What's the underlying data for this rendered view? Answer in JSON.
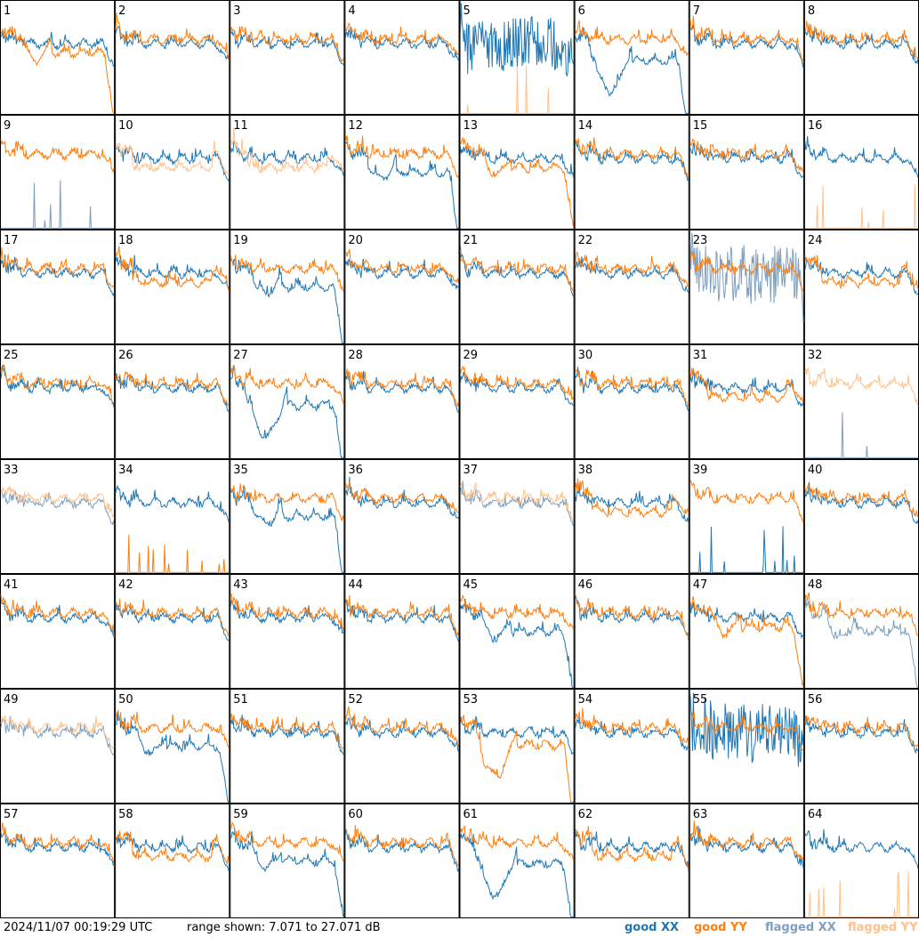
{
  "footer": {
    "timestamp": "2024/11/07 00:19:29 UTC",
    "range_text": "range shown: 7.071 to 27.071 dB"
  },
  "colors": {
    "good_xx": "#1f77b4",
    "good_yy": "#ff7f0e",
    "flagged_xx": "#7f9fbf",
    "flagged_yy": "#ffc089"
  },
  "chart_data": {
    "type": "line",
    "layout": "small-multiples 8x8",
    "y_range_db": [
      7.071,
      27.071
    ],
    "legend": [
      {
        "key": "good_xx",
        "label": "good XX"
      },
      {
        "key": "good_yy",
        "label": "good YY"
      },
      {
        "key": "flagged_xx",
        "label": "flagged XX"
      },
      {
        "key": "flagged_yy",
        "label": "flagged YY"
      }
    ],
    "panels": [
      {
        "label": "1",
        "xx": "good",
        "yy": "good",
        "xx_shape": "normal",
        "yy_shape": "dip"
      },
      {
        "label": "2",
        "xx": "good",
        "yy": "good",
        "xx_shape": "normal",
        "yy_shape": "normal"
      },
      {
        "label": "3",
        "xx": "good",
        "yy": "good",
        "xx_shape": "normal",
        "yy_shape": "normal"
      },
      {
        "label": "4",
        "xx": "good",
        "yy": "good",
        "xx_shape": "normal",
        "yy_shape": "normal"
      },
      {
        "label": "5",
        "xx": "good",
        "yy": "flagged",
        "xx_shape": "noisy",
        "yy_shape": "dead"
      },
      {
        "label": "6",
        "xx": "good",
        "yy": "good",
        "xx_shape": "deepdip",
        "yy_shape": "normal"
      },
      {
        "label": "7",
        "xx": "good",
        "yy": "good",
        "xx_shape": "normal",
        "yy_shape": "normal"
      },
      {
        "label": "8",
        "xx": "good",
        "yy": "good",
        "xx_shape": "normal",
        "yy_shape": "normal"
      },
      {
        "label": "9",
        "xx": "flagged",
        "yy": "good",
        "xx_shape": "dead",
        "yy_shape": "normal"
      },
      {
        "label": "10",
        "xx": "good",
        "yy": "flagged",
        "xx_shape": "normal",
        "yy_shape": "low"
      },
      {
        "label": "11",
        "xx": "good",
        "yy": "flagged",
        "xx_shape": "normal",
        "yy_shape": "low"
      },
      {
        "label": "12",
        "xx": "good",
        "yy": "good",
        "xx_shape": "dip",
        "yy_shape": "normal"
      },
      {
        "label": "13",
        "xx": "good",
        "yy": "good",
        "xx_shape": "normal",
        "yy_shape": "dip"
      },
      {
        "label": "14",
        "xx": "good",
        "yy": "good",
        "xx_shape": "normal",
        "yy_shape": "normal"
      },
      {
        "label": "15",
        "xx": "good",
        "yy": "good",
        "xx_shape": "normal",
        "yy_shape": "normal"
      },
      {
        "label": "16",
        "xx": "good",
        "yy": "flagged",
        "xx_shape": "normal",
        "yy_shape": "dead"
      },
      {
        "label": "17",
        "xx": "good",
        "yy": "good",
        "xx_shape": "normal",
        "yy_shape": "normal"
      },
      {
        "label": "18",
        "xx": "good",
        "yy": "good",
        "xx_shape": "normal",
        "yy_shape": "low"
      },
      {
        "label": "19",
        "xx": "good",
        "yy": "good",
        "xx_shape": "dip",
        "yy_shape": "normal"
      },
      {
        "label": "20",
        "xx": "good",
        "yy": "good",
        "xx_shape": "normal",
        "yy_shape": "normal"
      },
      {
        "label": "21",
        "xx": "good",
        "yy": "good",
        "xx_shape": "normal",
        "yy_shape": "normal"
      },
      {
        "label": "22",
        "xx": "good",
        "yy": "good",
        "xx_shape": "normal",
        "yy_shape": "normal"
      },
      {
        "label": "23",
        "xx": "flagged",
        "yy": "good",
        "xx_shape": "noisy",
        "yy_shape": "normal"
      },
      {
        "label": "24",
        "xx": "good",
        "yy": "good",
        "xx_shape": "normal",
        "yy_shape": "low"
      },
      {
        "label": "25",
        "xx": "good",
        "yy": "good",
        "xx_shape": "normal",
        "yy_shape": "normal"
      },
      {
        "label": "26",
        "xx": "good",
        "yy": "good",
        "xx_shape": "normal",
        "yy_shape": "normal"
      },
      {
        "label": "27",
        "xx": "good",
        "yy": "good",
        "xx_shape": "deepdip",
        "yy_shape": "normal"
      },
      {
        "label": "28",
        "xx": "good",
        "yy": "good",
        "xx_shape": "normal",
        "yy_shape": "normal"
      },
      {
        "label": "29",
        "xx": "good",
        "yy": "good",
        "xx_shape": "normal",
        "yy_shape": "normal"
      },
      {
        "label": "30",
        "xx": "good",
        "yy": "good",
        "xx_shape": "normal",
        "yy_shape": "normal"
      },
      {
        "label": "31",
        "xx": "good",
        "yy": "good",
        "xx_shape": "normal",
        "yy_shape": "low"
      },
      {
        "label": "32",
        "xx": "flagged",
        "yy": "flagged",
        "xx_shape": "dead",
        "yy_shape": "normal"
      },
      {
        "label": "33",
        "xx": "flagged",
        "yy": "flagged",
        "xx_shape": "normal",
        "yy_shape": "normal"
      },
      {
        "label": "34",
        "xx": "good",
        "yy": "good",
        "xx_shape": "normal",
        "yy_shape": "dead"
      },
      {
        "label": "35",
        "xx": "good",
        "yy": "good",
        "xx_shape": "dip",
        "yy_shape": "normal"
      },
      {
        "label": "36",
        "xx": "good",
        "yy": "good",
        "xx_shape": "normal",
        "yy_shape": "normal"
      },
      {
        "label": "37",
        "xx": "flagged",
        "yy": "flagged",
        "xx_shape": "normal",
        "yy_shape": "normal"
      },
      {
        "label": "38",
        "xx": "good",
        "yy": "good",
        "xx_shape": "normal",
        "yy_shape": "low"
      },
      {
        "label": "39",
        "xx": "good",
        "yy": "good",
        "xx_shape": "dead",
        "yy_shape": "normal"
      },
      {
        "label": "40",
        "xx": "good",
        "yy": "good",
        "xx_shape": "normal",
        "yy_shape": "normal"
      },
      {
        "label": "41",
        "xx": "good",
        "yy": "good",
        "xx_shape": "normal",
        "yy_shape": "normal"
      },
      {
        "label": "42",
        "xx": "good",
        "yy": "good",
        "xx_shape": "normal",
        "yy_shape": "normal"
      },
      {
        "label": "43",
        "xx": "good",
        "yy": "good",
        "xx_shape": "normal",
        "yy_shape": "normal"
      },
      {
        "label": "44",
        "xx": "good",
        "yy": "good",
        "xx_shape": "normal",
        "yy_shape": "normal"
      },
      {
        "label": "45",
        "xx": "good",
        "yy": "good",
        "xx_shape": "dip",
        "yy_shape": "normal"
      },
      {
        "label": "46",
        "xx": "good",
        "yy": "good",
        "xx_shape": "normal",
        "yy_shape": "normal"
      },
      {
        "label": "47",
        "xx": "good",
        "yy": "good",
        "xx_shape": "normal",
        "yy_shape": "dip"
      },
      {
        "label": "48",
        "xx": "flagged",
        "yy": "good",
        "xx_shape": "dip",
        "yy_shape": "normal"
      },
      {
        "label": "49",
        "xx": "flagged",
        "yy": "flagged",
        "xx_shape": "normal",
        "yy_shape": "normal"
      },
      {
        "label": "50",
        "xx": "good",
        "yy": "good",
        "xx_shape": "dip",
        "yy_shape": "normal"
      },
      {
        "label": "51",
        "xx": "good",
        "yy": "good",
        "xx_shape": "normal",
        "yy_shape": "normal"
      },
      {
        "label": "52",
        "xx": "good",
        "yy": "good",
        "xx_shape": "normal",
        "yy_shape": "normal"
      },
      {
        "label": "53",
        "xx": "good",
        "yy": "good",
        "xx_shape": "normal",
        "yy_shape": "deepdip"
      },
      {
        "label": "54",
        "xx": "good",
        "yy": "good",
        "xx_shape": "normal",
        "yy_shape": "normal"
      },
      {
        "label": "55",
        "xx": "good",
        "yy": "good",
        "xx_shape": "noisy",
        "yy_shape": "normal"
      },
      {
        "label": "56",
        "xx": "good",
        "yy": "good",
        "xx_shape": "normal",
        "yy_shape": "normal"
      },
      {
        "label": "57",
        "xx": "good",
        "yy": "good",
        "xx_shape": "normal",
        "yy_shape": "normal"
      },
      {
        "label": "58",
        "xx": "good",
        "yy": "good",
        "xx_shape": "normal",
        "yy_shape": "low"
      },
      {
        "label": "59",
        "xx": "good",
        "yy": "good",
        "xx_shape": "dip",
        "yy_shape": "normal"
      },
      {
        "label": "60",
        "xx": "good",
        "yy": "good",
        "xx_shape": "normal",
        "yy_shape": "normal"
      },
      {
        "label": "61",
        "xx": "good",
        "yy": "good",
        "xx_shape": "deepdip",
        "yy_shape": "normal"
      },
      {
        "label": "62",
        "xx": "good",
        "yy": "good",
        "xx_shape": "normal",
        "yy_shape": "low"
      },
      {
        "label": "63",
        "xx": "good",
        "yy": "good",
        "xx_shape": "normal",
        "yy_shape": "normal"
      },
      {
        "label": "64",
        "xx": "good",
        "yy": "flagged",
        "xx_shape": "normal",
        "yy_shape": "dead"
      }
    ]
  }
}
